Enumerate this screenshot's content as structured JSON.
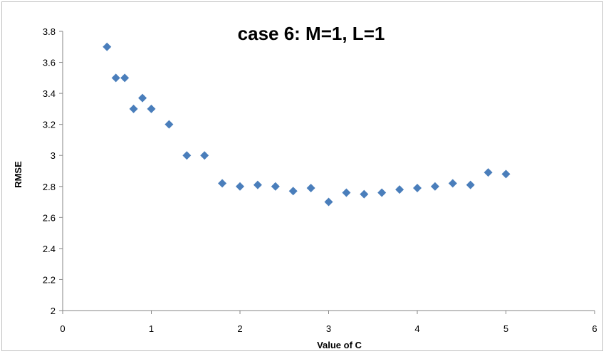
{
  "chart_data": {
    "type": "scatter",
    "title": "case 6: M=1, L=1",
    "xlabel": "Value of C",
    "ylabel": "RMSE",
    "xlim": [
      0,
      6
    ],
    "ylim": [
      2,
      3.8
    ],
    "xticks": [
      "0",
      "1",
      "2",
      "3",
      "4",
      "5",
      "6"
    ],
    "yticks": [
      "2",
      "2.2",
      "2.4",
      "2.6",
      "2.8",
      "3",
      "3.2",
      "3.4",
      "3.6",
      "3.8"
    ],
    "grid": false,
    "legend": "none",
    "marker": "diamond",
    "marker_color": "#4a7ebb",
    "series": [
      {
        "x": [
          0.5,
          0.6,
          0.7,
          0.8,
          0.9,
          1.0,
          1.2,
          1.4,
          1.6,
          1.8,
          2.0,
          2.2,
          2.4,
          2.6,
          2.8,
          3.0,
          3.2,
          3.4,
          3.6,
          3.8,
          4.0,
          4.2,
          4.4,
          4.6,
          4.8,
          5.0
        ],
        "y": [
          3.7,
          3.5,
          3.5,
          3.3,
          3.37,
          3.3,
          3.2,
          3.0,
          3.0,
          2.82,
          2.8,
          2.81,
          2.8,
          2.77,
          2.79,
          2.7,
          2.76,
          2.75,
          2.76,
          2.78,
          2.79,
          2.8,
          2.82,
          2.81,
          2.89,
          2.88
        ]
      }
    ]
  }
}
